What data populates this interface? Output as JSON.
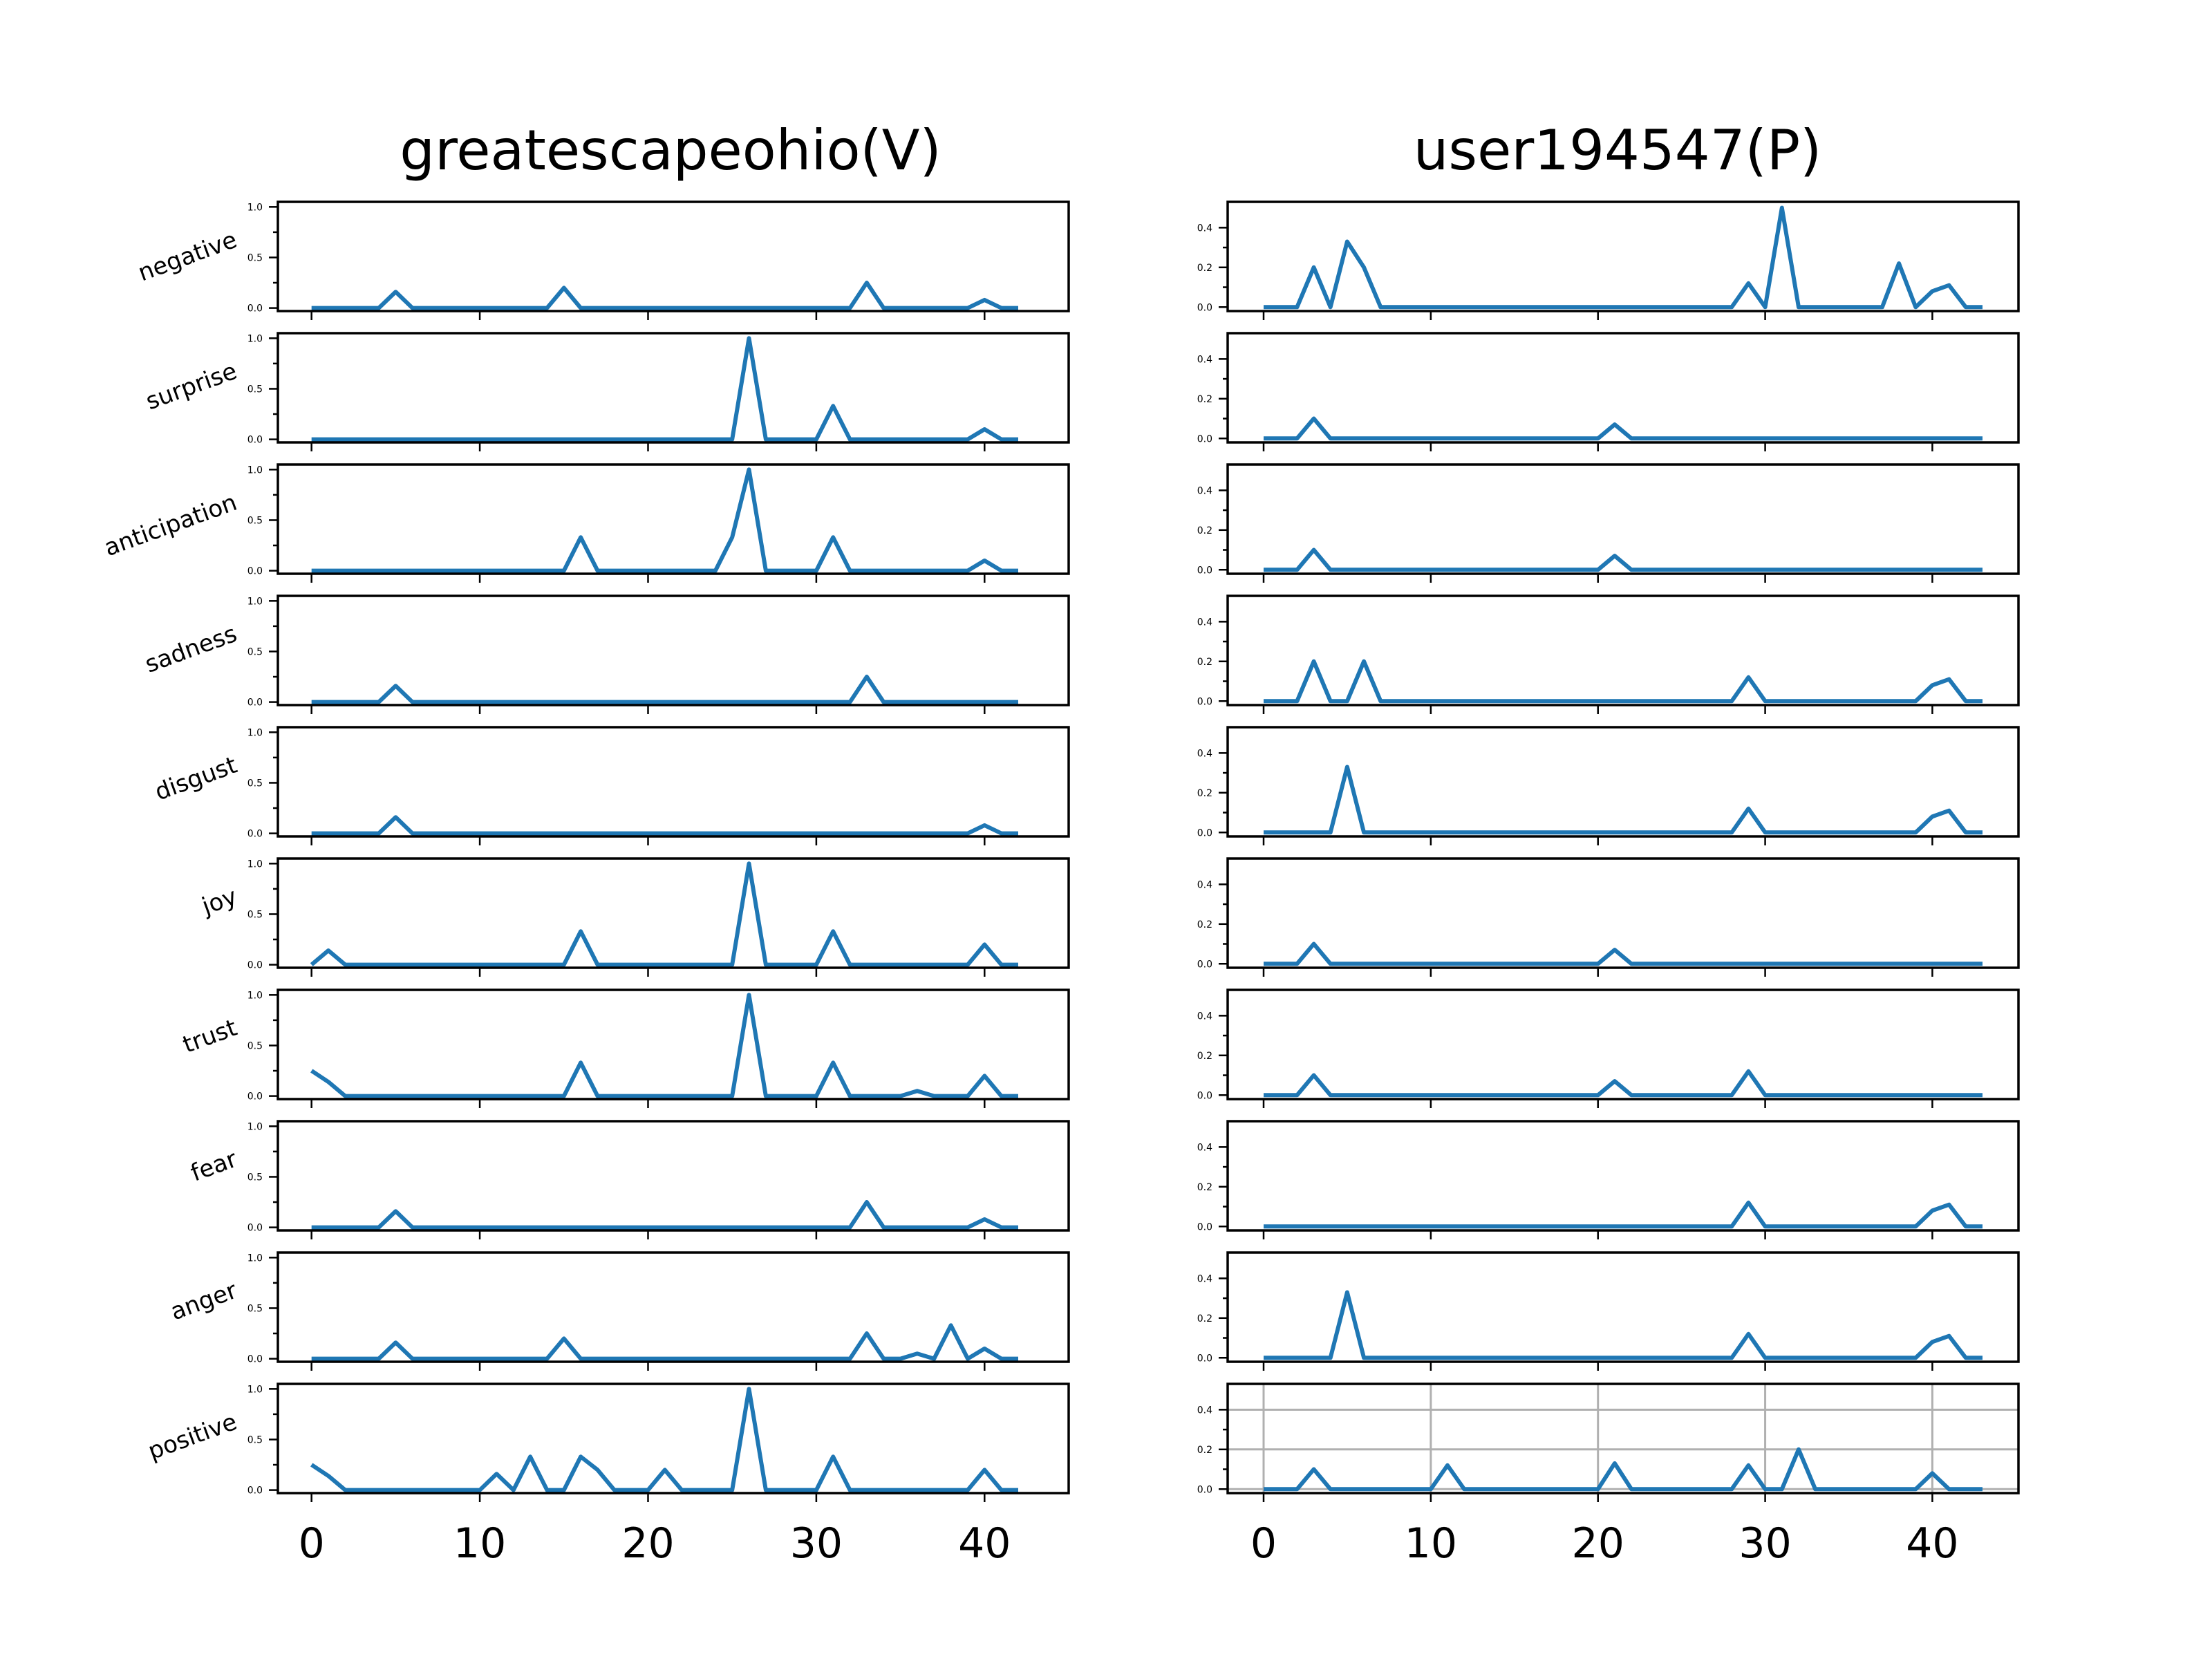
{
  "chart_data": {
    "type": "line",
    "layout": "small-multiples",
    "row_labels": [
      "negative",
      "surprise",
      "anticipation",
      "sadness",
      "disgust",
      "joy",
      "trust",
      "fear",
      "anger",
      "positive"
    ],
    "panels": [
      {
        "title": "greatescapeohio(V)",
        "xlim": [
          -2,
          45
        ],
        "ylim": [
          -0.03,
          1.05
        ],
        "yticks": [
          0.0,
          0.5,
          1.0
        ],
        "ytick_labels": [
          "0.0",
          "0.5",
          "1.0"
        ],
        "xticks": [
          0,
          10,
          20,
          30,
          40
        ],
        "xtick_labels": [
          "0",
          "10",
          "20",
          "30",
          "40"
        ],
        "grid_rows": [],
        "series": [
          {
            "row": "negative",
            "values": [
              0,
              0,
              0,
              0,
              0,
              0.16,
              0,
              0,
              0,
              0,
              0,
              0,
              0,
              0,
              0,
              0.2,
              0,
              0,
              0,
              0,
              0,
              0,
              0,
              0,
              0,
              0,
              0,
              0,
              0,
              0,
              0,
              0,
              0,
              0.25,
              0,
              0,
              0,
              0,
              0,
              0,
              0.08,
              0,
              0
            ]
          },
          {
            "row": "surprise",
            "values": [
              0,
              0,
              0,
              0,
              0,
              0,
              0,
              0,
              0,
              0,
              0,
              0,
              0,
              0,
              0,
              0,
              0,
              0,
              0,
              0,
              0,
              0,
              0,
              0,
              0,
              0,
              1.0,
              0,
              0,
              0,
              0,
              0.33,
              0,
              0,
              0,
              0,
              0,
              0,
              0,
              0,
              0.1,
              0,
              0
            ]
          },
          {
            "row": "anticipation",
            "values": [
              0,
              0,
              0,
              0,
              0,
              0,
              0,
              0,
              0,
              0,
              0,
              0,
              0,
              0,
              0,
              0,
              0.33,
              0,
              0,
              0,
              0,
              0,
              0,
              0,
              0,
              0.33,
              1.0,
              0,
              0,
              0,
              0,
              0.33,
              0,
              0,
              0,
              0,
              0,
              0,
              0,
              0,
              0.1,
              0,
              0
            ]
          },
          {
            "row": "sadness",
            "values": [
              0,
              0,
              0,
              0,
              0,
              0.16,
              0,
              0,
              0,
              0,
              0,
              0,
              0,
              0,
              0,
              0,
              0,
              0,
              0,
              0,
              0,
              0,
              0,
              0,
              0,
              0,
              0,
              0,
              0,
              0,
              0,
              0,
              0,
              0.25,
              0,
              0,
              0,
              0,
              0,
              0,
              0,
              0,
              0
            ]
          },
          {
            "row": "disgust",
            "values": [
              0,
              0,
              0,
              0,
              0,
              0.16,
              0,
              0,
              0,
              0,
              0,
              0,
              0,
              0,
              0,
              0,
              0,
              0,
              0,
              0,
              0,
              0,
              0,
              0,
              0,
              0,
              0,
              0,
              0,
              0,
              0,
              0,
              0,
              0,
              0,
              0,
              0,
              0,
              0,
              0,
              0.08,
              0,
              0
            ]
          },
          {
            "row": "joy",
            "values": [
              0,
              0.14,
              0,
              0,
              0,
              0,
              0,
              0,
              0,
              0,
              0,
              0,
              0,
              0,
              0,
              0,
              0.33,
              0,
              0,
              0,
              0,
              0,
              0,
              0,
              0,
              0,
              1.0,
              0,
              0,
              0,
              0,
              0.33,
              0,
              0,
              0,
              0,
              0,
              0,
              0,
              0,
              0.2,
              0,
              0
            ]
          },
          {
            "row": "trust",
            "values": [
              0.25,
              0.14,
              0,
              0,
              0,
              0,
              0,
              0,
              0,
              0,
              0,
              0,
              0,
              0,
              0,
              0,
              0.33,
              0,
              0,
              0,
              0,
              0,
              0,
              0,
              0,
              0,
              1.0,
              0,
              0,
              0,
              0,
              0.33,
              0,
              0,
              0,
              0,
              0.05,
              0,
              0,
              0,
              0.2,
              0,
              0
            ]
          },
          {
            "row": "fear",
            "values": [
              0,
              0,
              0,
              0,
              0,
              0.16,
              0,
              0,
              0,
              0,
              0,
              0,
              0,
              0,
              0,
              0,
              0,
              0,
              0,
              0,
              0,
              0,
              0,
              0,
              0,
              0,
              0,
              0,
              0,
              0,
              0,
              0,
              0,
              0.25,
              0,
              0,
              0,
              0,
              0,
              0,
              0.08,
              0,
              0
            ]
          },
          {
            "row": "anger",
            "values": [
              0,
              0,
              0,
              0,
              0,
              0.16,
              0,
              0,
              0,
              0,
              0,
              0,
              0,
              0,
              0,
              0.2,
              0,
              0,
              0,
              0,
              0,
              0,
              0,
              0,
              0,
              0,
              0,
              0,
              0,
              0,
              0,
              0,
              0,
              0.25,
              0,
              0,
              0.05,
              0,
              0.33,
              0,
              0.1,
              0,
              0
            ]
          },
          {
            "row": "positive",
            "values": [
              0.25,
              0.14,
              0,
              0,
              0,
              0,
              0,
              0,
              0,
              0,
              0,
              0.16,
              0,
              0.33,
              0,
              0,
              0.33,
              0.2,
              0,
              0,
              0,
              0.2,
              0,
              0,
              0,
              0,
              1.0,
              0,
              0,
              0,
              0,
              0.33,
              0,
              0,
              0,
              0,
              0,
              0,
              0,
              0,
              0.2,
              0,
              0
            ]
          }
        ]
      },
      {
        "title": "user194547(P)",
        "xlim": [
          -2.15,
          45.15
        ],
        "ylim": [
          -0.02,
          0.53
        ],
        "yticks": [
          0.0,
          0.2,
          0.4
        ],
        "ytick_labels": [
          "0.0",
          "0.2",
          "0.4"
        ],
        "xticks": [
          0,
          10,
          20,
          30,
          40
        ],
        "xtick_labels": [
          "0",
          "10",
          "20",
          "30",
          "40"
        ],
        "grid_rows": [
          "positive"
        ],
        "series": [
          {
            "row": "negative",
            "values": [
              0,
              0,
              0,
              0.2,
              0,
              0.33,
              0.2,
              0,
              0,
              0,
              0,
              0,
              0,
              0,
              0,
              0,
              0,
              0,
              0,
              0,
              0,
              0,
              0,
              0,
              0,
              0,
              0,
              0,
              0,
              0.12,
              0,
              0.5,
              0,
              0,
              0,
              0,
              0,
              0,
              0.22,
              0,
              0.08,
              0.11,
              0,
              0
            ]
          },
          {
            "row": "surprise",
            "values": [
              0,
              0,
              0,
              0.1,
              0,
              0,
              0,
              0,
              0,
              0,
              0,
              0,
              0,
              0,
              0,
              0,
              0,
              0,
              0,
              0,
              0,
              0.07,
              0,
              0,
              0,
              0,
              0,
              0,
              0,
              0,
              0,
              0,
              0,
              0,
              0,
              0,
              0,
              0,
              0,
              0,
              0,
              0,
              0,
              0
            ]
          },
          {
            "row": "anticipation",
            "values": [
              0,
              0,
              0,
              0.1,
              0,
              0,
              0,
              0,
              0,
              0,
              0,
              0,
              0,
              0,
              0,
              0,
              0,
              0,
              0,
              0,
              0,
              0.07,
              0,
              0,
              0,
              0,
              0,
              0,
              0,
              0,
              0,
              0,
              0,
              0,
              0,
              0,
              0,
              0,
              0,
              0,
              0,
              0,
              0,
              0
            ]
          },
          {
            "row": "sadness",
            "values": [
              0,
              0,
              0,
              0.2,
              0,
              0,
              0.2,
              0,
              0,
              0,
              0,
              0,
              0,
              0,
              0,
              0,
              0,
              0,
              0,
              0,
              0,
              0,
              0,
              0,
              0,
              0,
              0,
              0,
              0,
              0.12,
              0,
              0,
              0,
              0,
              0,
              0,
              0,
              0,
              0,
              0,
              0.08,
              0.11,
              0,
              0
            ]
          },
          {
            "row": "disgust",
            "values": [
              0,
              0,
              0,
              0,
              0,
              0.33,
              0,
              0,
              0,
              0,
              0,
              0,
              0,
              0,
              0,
              0,
              0,
              0,
              0,
              0,
              0,
              0,
              0,
              0,
              0,
              0,
              0,
              0,
              0,
              0.12,
              0,
              0,
              0,
              0,
              0,
              0,
              0,
              0,
              0,
              0,
              0.08,
              0.11,
              0,
              0
            ]
          },
          {
            "row": "joy",
            "values": [
              0,
              0,
              0,
              0.1,
              0,
              0,
              0,
              0,
              0,
              0,
              0,
              0,
              0,
              0,
              0,
              0,
              0,
              0,
              0,
              0,
              0,
              0.07,
              0,
              0,
              0,
              0,
              0,
              0,
              0,
              0,
              0,
              0,
              0,
              0,
              0,
              0,
              0,
              0,
              0,
              0,
              0,
              0,
              0,
              0
            ]
          },
          {
            "row": "trust",
            "values": [
              0,
              0,
              0,
              0.1,
              0,
              0,
              0,
              0,
              0,
              0,
              0,
              0,
              0,
              0,
              0,
              0,
              0,
              0,
              0,
              0,
              0,
              0.07,
              0,
              0,
              0,
              0,
              0,
              0,
              0,
              0.12,
              0,
              0,
              0,
              0,
              0,
              0,
              0,
              0,
              0,
              0,
              0,
              0,
              0,
              0
            ]
          },
          {
            "row": "fear",
            "values": [
              0,
              0,
              0,
              0,
              0,
              0,
              0,
              0,
              0,
              0,
              0,
              0,
              0,
              0,
              0,
              0,
              0,
              0,
              0,
              0,
              0,
              0,
              0,
              0,
              0,
              0,
              0,
              0,
              0,
              0.12,
              0,
              0,
              0,
              0,
              0,
              0,
              0,
              0,
              0,
              0,
              0.08,
              0.11,
              0,
              0
            ]
          },
          {
            "row": "anger",
            "values": [
              0,
              0,
              0,
              0,
              0,
              0.33,
              0,
              0,
              0,
              0,
              0,
              0,
              0,
              0,
              0,
              0,
              0,
              0,
              0,
              0,
              0,
              0,
              0,
              0,
              0,
              0,
              0,
              0,
              0,
              0.12,
              0,
              0,
              0,
              0,
              0,
              0,
              0,
              0,
              0,
              0,
              0.08,
              0.11,
              0,
              0
            ]
          },
          {
            "row": "positive",
            "values": [
              0,
              0,
              0,
              0.1,
              0,
              0,
              0,
              0,
              0,
              0,
              0,
              0.12,
              0,
              0,
              0,
              0,
              0,
              0,
              0,
              0,
              0,
              0.13,
              0,
              0,
              0,
              0,
              0,
              0,
              0,
              0.12,
              0,
              0,
              0.2,
              0,
              0,
              0,
              0,
              0,
              0,
              0,
              0.08,
              0,
              0,
              0
            ]
          }
        ]
      }
    ]
  }
}
